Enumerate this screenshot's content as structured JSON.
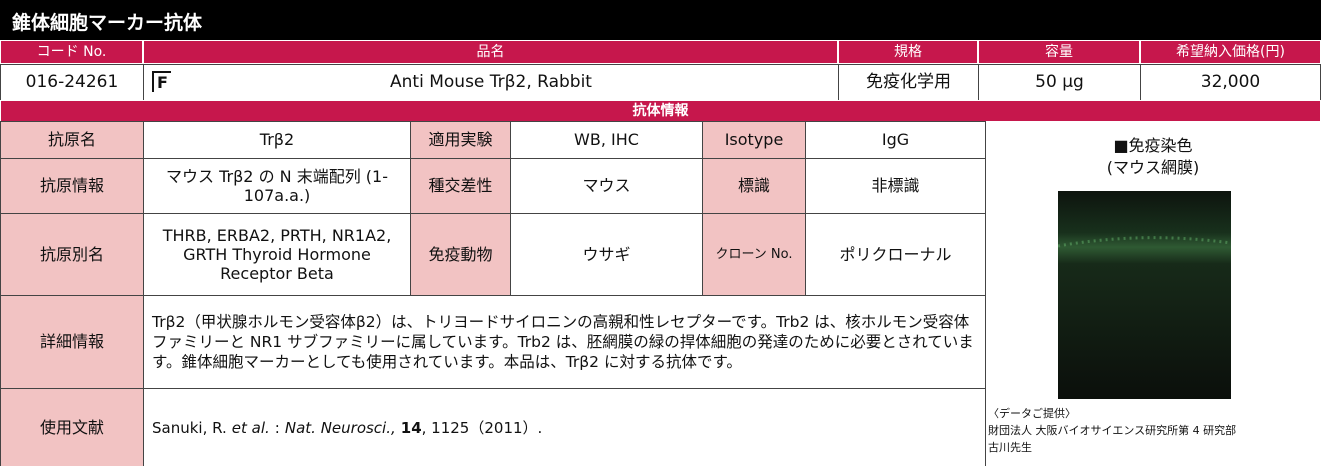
{
  "title": "錐体細胞マーカー抗体",
  "header": [
    "コード No.",
    "品名",
    "規格",
    "容量",
    "希望納入価格(円)"
  ],
  "product": {
    "code": "016-24261",
    "mark": "F",
    "name": "Anti Mouse Trβ2, Rabbit",
    "spec": "免疫化学用",
    "volume": "50 μg",
    "price": "32,000"
  },
  "section": "抗体情報",
  "rows": [
    [
      "抗原名",
      "Trβ2",
      "適用実験",
      "WB, IHC",
      "Isotype",
      "IgG"
    ],
    [
      "抗原情報",
      "マウス Trβ2 の N 末端配列 (1-107a.a.)",
      "種交差性",
      "マウス",
      "標識",
      "非標識"
    ],
    [
      "抗原別名",
      "THRB, ERBA2, PRTH, NR1A2, GRTH Thyroid Hormone Receptor Beta",
      "免疫動物",
      "ウサギ",
      "クローン No.",
      "ポリクローナル"
    ]
  ],
  "detail": {
    "label": "詳細情報",
    "text": "Trβ2（甲状腺ホルモン受容体β2）は、トリヨードサイロニンの高親和性レセプターです。Trb2 は、核ホルモン受容体ファミリーと NR1 サブファミリーに属しています。Trb2 は、胚網膜の緑の捍体細胞の発達のために必要とされています。錐体細胞マーカーとしても使用されています。本品は、Trβ2 に対する抗体です。"
  },
  "reference": {
    "label": "使用文献",
    "parts": [
      "Sanuki, R.",
      "et al.",
      ":",
      "Nat. Neurosci.,",
      "14",
      ", 1125（2011）."
    ]
  },
  "image": {
    "caption": [
      "■免疫染色",
      "(マウス網膜)"
    ],
    "credit": [
      "〈データご提供〉",
      "財団法人 大阪バイオサイエンス研究所第 4 研究部",
      "古川先生"
    ]
  }
}
